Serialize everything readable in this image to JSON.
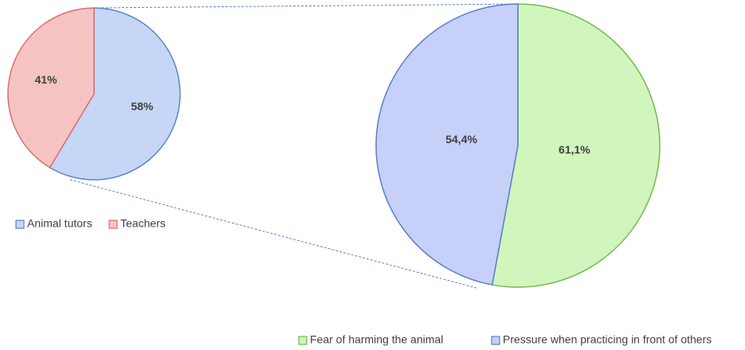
{
  "chart_data": [
    {
      "type": "pie",
      "categories": [
        "Animal tutors",
        "Teachers"
      ],
      "values": [
        58,
        41
      ],
      "value_labels": [
        "58%",
        "41%"
      ],
      "colors": [
        "#c6d6f6",
        "#f6c3c3"
      ],
      "stroke_colors": [
        "#5b86c4",
        "#d9706d"
      ]
    },
    {
      "type": "pie",
      "categories": [
        "Fear of harming the animal",
        "Pressure when practicing in front of others"
      ],
      "values": [
        61.1,
        54.4
      ],
      "value_labels": [
        "61,1%",
        "54,4%"
      ],
      "colors": [
        "#d0f5bd",
        "#c6d0f8"
      ],
      "stroke_colors": [
        "#77b84c",
        "#5b7fc4"
      ]
    }
  ]
}
